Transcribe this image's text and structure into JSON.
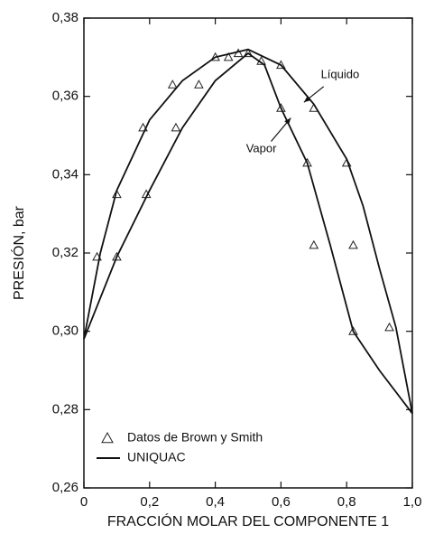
{
  "chart_data": {
    "type": "line",
    "xlabel": "FRACCIÓN MOLAR DEL COMPONENTE 1",
    "ylabel": "PRESIÓN, bar",
    "xlim": [
      0,
      1
    ],
    "ylim": [
      0.26,
      0.38
    ],
    "xticks": [
      0,
      {
        "value": 0.2,
        "label": "0,2"
      },
      {
        "value": 0.4,
        "label": "0,4"
      },
      {
        "value": 0.6,
        "label": "0,6"
      },
      {
        "value": 0.8,
        "label": "0,8"
      },
      {
        "value": 1.0,
        "label": "1,0"
      }
    ],
    "yticks": [
      {
        "value": 0.26,
        "label": "0,26"
      },
      {
        "value": 0.28,
        "label": "0,28"
      },
      {
        "value": 0.3,
        "label": "0,30"
      },
      {
        "value": 0.32,
        "label": "0,32"
      },
      {
        "value": 0.34,
        "label": "0,34"
      },
      {
        "value": 0.36,
        "label": "0,36"
      },
      {
        "value": 0.38,
        "label": "0,38"
      }
    ],
    "legend": "lower left",
    "annotations": [
      {
        "text": "Líquido",
        "x": 0.78,
        "y": 0.3655
      },
      {
        "text": "Vapor",
        "x": 0.54,
        "y": 0.3465
      }
    ],
    "series": [
      {
        "name": "Datos de Brown y Smith",
        "type": "scatter",
        "color": "#222222",
        "x": [
          0.04,
          0.1,
          0.1,
          0.19,
          0.18,
          0.28,
          0.27,
          0.35,
          0.4,
          0.44,
          0.47,
          0.5,
          0.54,
          0.6,
          0.6,
          0.7,
          0.68,
          0.8,
          0.7,
          0.82,
          0.82,
          0.93
        ],
        "values": [
          0.319,
          0.319,
          0.335,
          0.335,
          0.352,
          0.352,
          0.363,
          0.363,
          0.37,
          0.37,
          0.371,
          0.371,
          0.369,
          0.368,
          0.357,
          0.357,
          0.343,
          0.343,
          0.322,
          0.322,
          0.3,
          0.301
        ]
      },
      {
        "name": "UNIQUAC",
        "type": "line",
        "color": "#111111",
        "x": [
          0,
          0.05,
          0.1,
          0.2,
          0.3,
          0.4,
          0.5,
          0.6,
          0.7,
          0.8,
          0.85,
          0.9,
          0.95,
          1.0,
          null,
          0,
          0.1,
          0.2,
          0.3,
          0.4,
          0.5,
          0.55,
          0.6,
          0.68,
          0.75,
          0.82,
          0.9,
          1.0
        ],
        "values": [
          0.298,
          0.32,
          0.336,
          0.354,
          0.364,
          0.37,
          0.372,
          0.368,
          0.358,
          0.344,
          0.332,
          0.316,
          0.301,
          0.279,
          null,
          0.298,
          0.319,
          0.336,
          0.352,
          0.364,
          0.371,
          0.368,
          0.357,
          0.343,
          0.322,
          0.3,
          0.29,
          0.279
        ]
      }
    ]
  }
}
